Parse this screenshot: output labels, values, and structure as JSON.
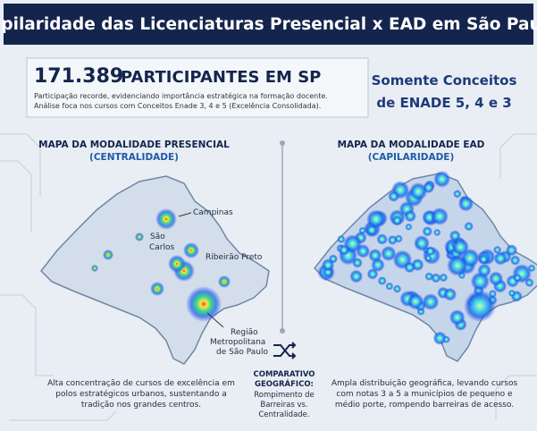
{
  "header": {
    "title": "Capilaridade das Licenciaturas Presencial x EAD em São Paulo"
  },
  "summary": {
    "number": "171.389",
    "headline": "PARTICIPANTES EM SP",
    "description": [
      "Participação recorde, evidenciando importância estratégica na formação docente.",
      "Análise foca nos cursos com Conceitos Enade 3, 4 e 5 (Excelência Consolidada)."
    ]
  },
  "filter_note": [
    "Somente Conceitos",
    "de ENADE 5, 4 e 3"
  ],
  "maps": [
    {
      "title": "MAPA DA MODALIDADE PRESENCIAL",
      "subtitle": "(CENTRALIDADE)",
      "labels": [
        "Campinas",
        "São",
        "Carlos",
        "Ribeirão Preto",
        "Região",
        "Metropolitana",
        "de São Paulo"
      ],
      "caption": [
        "Alta concentração de cursos de excelência em",
        "polos estratégicos urbanos, sustentando a",
        "tradição nos grandes centros."
      ]
    },
    {
      "title": "MAPA DA MODALIDADE EAD",
      "subtitle": "(CAPILARIDADE)",
      "caption": [
        "Ampla distribuição geográfica, levando cursos",
        "com notas 3 a 5 a municípios de pequeno e",
        "médio porte, rompendo barreiras de acesso."
      ]
    }
  ],
  "comparison": {
    "title": [
      "COMPARATIVO",
      "GEOGRÁFICO:"
    ],
    "text": [
      "Rompimento de",
      "Barreiras vs.",
      "Centralidade."
    ]
  }
}
